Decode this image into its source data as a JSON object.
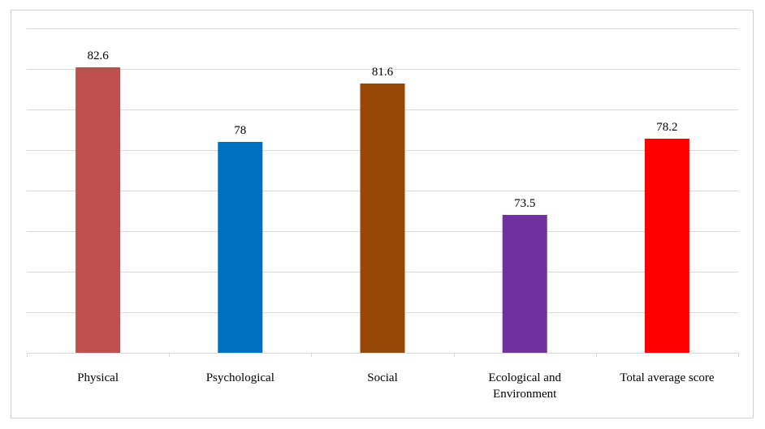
{
  "chart_data": {
    "type": "bar",
    "title": "",
    "xlabel": "",
    "ylabel": "",
    "categories": [
      [
        "Physical"
      ],
      [
        "Psychological"
      ],
      [
        "Social"
      ],
      [
        "Ecological and",
        "Environment"
      ],
      [
        "Total average score"
      ]
    ],
    "values": [
      82.6,
      78,
      81.6,
      73.5,
      78.2
    ],
    "data_labels": [
      "82.6",
      "78",
      "81.6",
      "73.5",
      "78.2"
    ],
    "colors": [
      "#c0504d",
      "#0070c0",
      "#974706",
      "#7030a0",
      "#ff0000"
    ],
    "ylim": [
      65,
      85
    ],
    "gridlines": [
      65,
      67.5,
      70,
      72.5,
      75,
      77.5,
      80,
      82.5,
      85
    ],
    "grid": true,
    "legend": "none",
    "y_axis_labels_shown": false
  }
}
